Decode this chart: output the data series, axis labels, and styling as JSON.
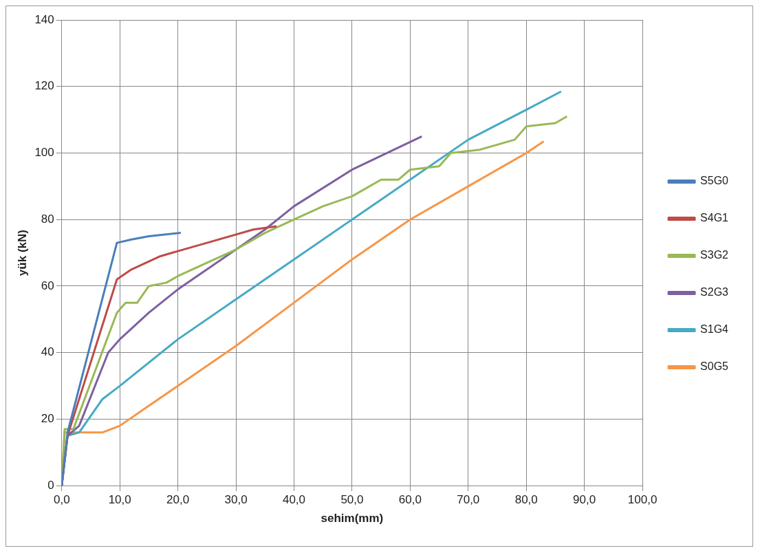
{
  "chart_data": {
    "type": "line",
    "xlabel": "sehim(mm)",
    "ylabel": "yük (kN)",
    "xlim": [
      0,
      100
    ],
    "ylim": [
      0,
      140
    ],
    "xticks": [
      {
        "value": 0,
        "label": "0,0"
      },
      {
        "value": 10,
        "label": "10,0"
      },
      {
        "value": 20,
        "label": "20,0"
      },
      {
        "value": 30,
        "label": "30,0"
      },
      {
        "value": 40,
        "label": "40,0"
      },
      {
        "value": 50,
        "label": "50,0"
      },
      {
        "value": 60,
        "label": "60,0"
      },
      {
        "value": 70,
        "label": "70,0"
      },
      {
        "value": 80,
        "label": "80,0"
      },
      {
        "value": 90,
        "label": "90,0"
      },
      {
        "value": 100,
        "label": "100,0"
      }
    ],
    "yticks": [
      0,
      20,
      40,
      60,
      80,
      100,
      120,
      140
    ],
    "grid": true,
    "legend": "right",
    "marker": "none",
    "line_style": "solid",
    "series": [
      {
        "name": "S5G0",
        "color": "#4a7ebb",
        "x": [
          0,
          1,
          9.5,
          12,
          15,
          20.5
        ],
        "values": [
          0,
          16,
          73,
          74,
          75,
          76
        ]
      },
      {
        "name": "S4G1",
        "color": "#be4b48",
        "x": [
          0,
          1,
          9.5,
          12,
          17,
          25,
          33,
          37
        ],
        "values": [
          0,
          15,
          62,
          65,
          69,
          73,
          77,
          78
        ]
      },
      {
        "name": "S3G2",
        "color": "#98b954",
        "x": [
          0,
          0.5,
          2,
          8,
          9.5,
          11,
          13,
          15,
          18,
          20,
          25,
          30,
          35,
          40,
          45,
          50,
          55,
          58,
          60,
          65,
          67,
          72,
          78,
          80,
          85,
          87
        ],
        "values": [
          0,
          17,
          17,
          45,
          52,
          55,
          55,
          60,
          61,
          63,
          67,
          71,
          76,
          80,
          84,
          87,
          92,
          92,
          95,
          96,
          100,
          101,
          104,
          108,
          109,
          111
        ]
      },
      {
        "name": "S2G3",
        "color": "#7d60a0",
        "x": [
          0,
          1,
          3,
          8,
          10,
          15,
          20,
          30,
          35,
          40,
          50,
          62
        ],
        "values": [
          0,
          15,
          18,
          40,
          44,
          52,
          59,
          71,
          77,
          84,
          95,
          105
        ]
      },
      {
        "name": "S1G4",
        "color": "#46aac5",
        "x": [
          0,
          1,
          3,
          7,
          10,
          20,
          30,
          40,
          50,
          60,
          70,
          80,
          86
        ],
        "values": [
          0,
          15,
          16,
          26,
          30,
          44,
          56,
          68,
          80,
          92,
          104,
          113,
          118.5
        ]
      },
      {
        "name": "S0G5",
        "color": "#f79646",
        "x": [
          0,
          0.5,
          7,
          10,
          15,
          20,
          30,
          40,
          50,
          60,
          70,
          80,
          83
        ],
        "values": [
          0,
          16,
          16,
          18,
          24,
          30,
          42,
          55,
          68,
          80,
          90,
          100,
          103.5
        ]
      }
    ]
  }
}
